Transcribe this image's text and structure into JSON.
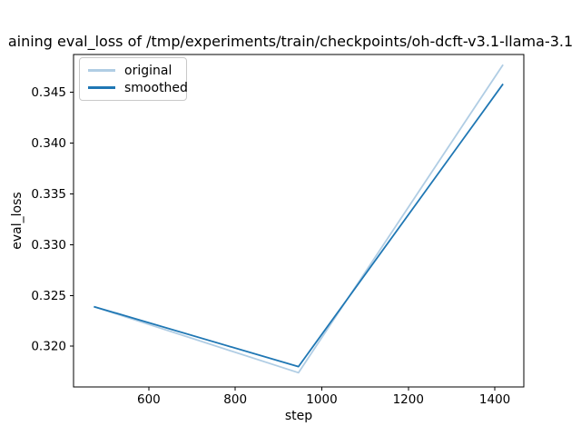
{
  "chart_data": {
    "type": "line",
    "title": "aining eval_loss of /tmp/experiments/train/checkpoints/oh-dcft-v3.1-llama-3.1",
    "xlabel": "step",
    "ylabel": "eval_loss",
    "x": [
      473,
      946,
      1419
    ],
    "series": [
      {
        "name": "original",
        "color": "#b0cde4",
        "values": [
          0.3239,
          0.3174,
          0.3477
        ]
      },
      {
        "name": "smoothed",
        "color": "#1f77b4",
        "values": [
          0.3239,
          0.318,
          0.3458
        ]
      }
    ],
    "xlim": [
      426,
      1467
    ],
    "ylim": [
      0.316,
      0.3487
    ],
    "xticks": [
      600,
      800,
      1000,
      1200,
      1400
    ],
    "xtick_labels": [
      "600",
      "800",
      "1000",
      "1200",
      "1400"
    ],
    "yticks": [
      0.32,
      0.325,
      0.33,
      0.335,
      0.34,
      0.345
    ],
    "ytick_labels": [
      "0.320",
      "0.325",
      "0.330",
      "0.335",
      "0.340",
      "0.345"
    ],
    "grid": false,
    "legend_position": "upper-left",
    "colors": {
      "spine": "#000000",
      "tick": "#000000",
      "text": "#000000",
      "background": "#ffffff"
    }
  }
}
